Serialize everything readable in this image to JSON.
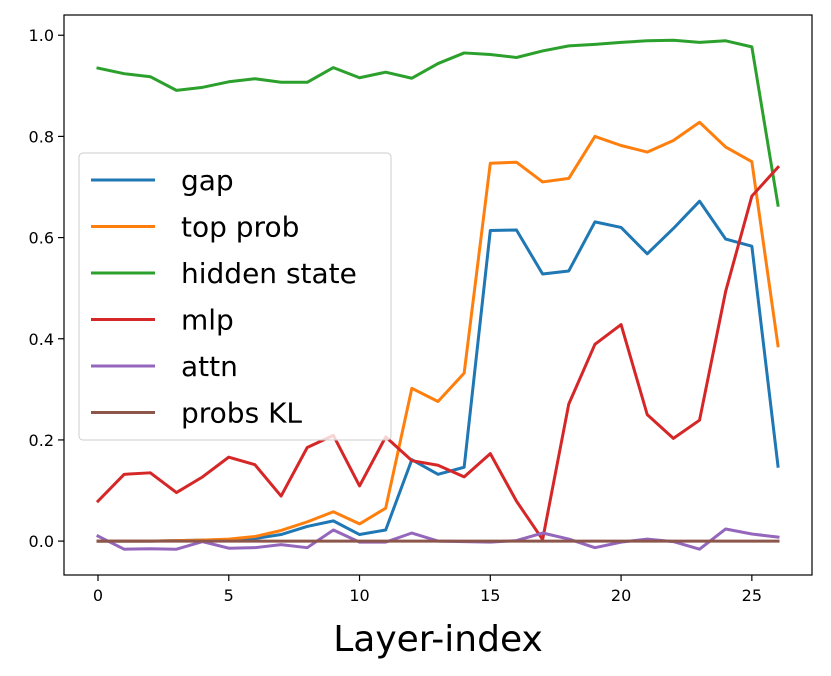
{
  "chart_data": {
    "type": "line",
    "title": "",
    "xlabel": "Layer-index",
    "ylabel": "",
    "xlim": [
      -1.3,
      27.3
    ],
    "ylim": [
      -0.067,
      1.04
    ],
    "xticks": [
      0,
      5,
      10,
      15,
      20,
      25
    ],
    "yticks": [
      0.0,
      0.2,
      0.4,
      0.6,
      0.8,
      1.0
    ],
    "xtick_labels": [
      "0",
      "5",
      "10",
      "15",
      "20",
      "25"
    ],
    "ytick_labels": [
      "0.0",
      "0.2",
      "0.4",
      "0.6",
      "0.8",
      "1.0"
    ],
    "grid": false,
    "legend_position": "center-left",
    "x": [
      0,
      1,
      2,
      3,
      4,
      5,
      6,
      7,
      8,
      9,
      10,
      11,
      12,
      13,
      14,
      15,
      16,
      17,
      18,
      19,
      20,
      21,
      22,
      23,
      24,
      25,
      26
    ],
    "series": [
      {
        "name": "gap",
        "color": "#1f77b4",
        "values": [
          0.0,
          0.0,
          0.0,
          0.001,
          0.002,
          0.003,
          0.005,
          0.013,
          0.029,
          0.04,
          0.013,
          0.022,
          0.161,
          0.132,
          0.146,
          0.614,
          0.615,
          0.528,
          0.534,
          0.631,
          0.62,
          0.568,
          0.618,
          0.672,
          0.597,
          0.583,
          0.148
        ]
      },
      {
        "name": "top prob",
        "color": "#ff7f0e",
        "values": [
          0.0,
          0.0,
          0.0,
          0.001,
          0.002,
          0.004,
          0.009,
          0.021,
          0.038,
          0.058,
          0.034,
          0.065,
          0.302,
          0.276,
          0.332,
          0.747,
          0.749,
          0.71,
          0.717,
          0.8,
          0.782,
          0.769,
          0.792,
          0.828,
          0.779,
          0.75,
          0.386
        ]
      },
      {
        "name": "hidden state",
        "color": "#2ca02c",
        "values": [
          0.935,
          0.924,
          0.918,
          0.891,
          0.897,
          0.908,
          0.914,
          0.907,
          0.907,
          0.936,
          0.916,
          0.927,
          0.915,
          0.944,
          0.965,
          0.962,
          0.956,
          0.969,
          0.979,
          0.982,
          0.986,
          0.989,
          0.99,
          0.986,
          0.989,
          0.977,
          0.664
        ]
      },
      {
        "name": "mlp",
        "color": "#d62728",
        "values": [
          0.079,
          0.132,
          0.135,
          0.096,
          0.127,
          0.166,
          0.151,
          0.089,
          0.185,
          0.209,
          0.109,
          0.206,
          0.159,
          0.15,
          0.127,
          0.173,
          0.079,
          0.003,
          0.271,
          0.389,
          0.428,
          0.25,
          0.203,
          0.239,
          0.494,
          0.682,
          0.739
        ]
      },
      {
        "name": "attn",
        "color": "#9467bd",
        "values": [
          0.01,
          -0.016,
          -0.015,
          -0.016,
          -0.001,
          -0.014,
          -0.013,
          -0.007,
          -0.013,
          0.022,
          -0.002,
          -0.002,
          0.016,
          0.0,
          -0.001,
          -0.002,
          0.001,
          0.016,
          0.004,
          -0.013,
          -0.002,
          0.004,
          -0.001,
          -0.016,
          0.024,
          0.014,
          0.008
        ]
      },
      {
        "name": "probs KL",
        "color": "#8c564b",
        "values": [
          0.0,
          0.0,
          0.0,
          0.0,
          0.0,
          0.0,
          0.0,
          0.0,
          0.0,
          0.0,
          0.0,
          0.0,
          0.0,
          0.0,
          0.0,
          0.0,
          0.0,
          0.0,
          0.0,
          0.0,
          0.0,
          0.0,
          0.0,
          0.0,
          0.0,
          0.0,
          0.0
        ]
      }
    ]
  }
}
